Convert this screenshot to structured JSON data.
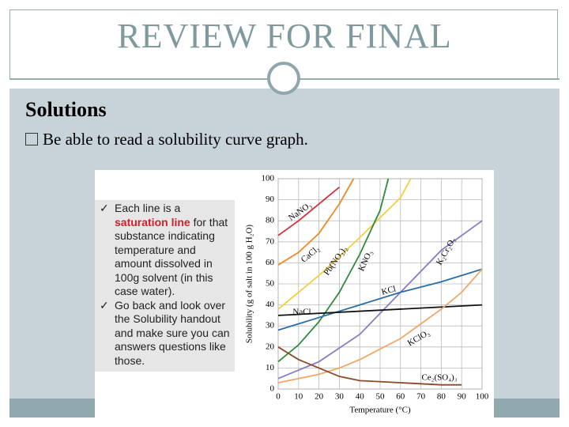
{
  "header": {
    "title": "REVIEW FOR FINAL"
  },
  "body": {
    "heading": "Solutions",
    "bullets": [
      "Be able to read a solubility curve graph."
    ]
  },
  "note": {
    "items": [
      {
        "before": "Each line is a ",
        "highlight": "saturation line",
        "after": " for that substance indicating temperature and amount dissolved in 100g solvent (in this case water)."
      },
      {
        "text": "Go back and look over the Solubility handout and make sure you can answers questions like those."
      }
    ]
  },
  "chart_data": {
    "type": "line",
    "xlabel": "Temperature (°C)",
    "ylabel": "Solubility (g of salt in 100 g H₂O)",
    "xlim": [
      0,
      100
    ],
    "ylim": [
      0,
      100
    ],
    "xticks": [
      0,
      10,
      20,
      30,
      40,
      50,
      60,
      70,
      80,
      90,
      100
    ],
    "yticks": [
      0,
      10,
      20,
      30,
      40,
      50,
      60,
      70,
      80,
      90,
      100
    ],
    "grid": true,
    "series": [
      {
        "name": "NaNO₃",
        "color": "#d2303a",
        "x": [
          0,
          10,
          20,
          30
        ],
        "values": [
          73,
          80,
          88,
          96
        ]
      },
      {
        "name": "CaCl₂",
        "color": "#f08a24",
        "x": [
          0,
          10,
          20,
          30,
          37
        ],
        "values": [
          59,
          65,
          74,
          88,
          100
        ]
      },
      {
        "name": "Pb(NO₃)₂",
        "color": "#f3cf3a",
        "x": [
          0,
          20,
          40,
          60,
          65
        ],
        "values": [
          38,
          54,
          72,
          91,
          100
        ]
      },
      {
        "name": "KNO₃",
        "color": "#2e8b3a",
        "x": [
          0,
          10,
          20,
          30,
          40,
          50,
          54
        ],
        "values": [
          13,
          21,
          32,
          46,
          64,
          85,
          100
        ]
      },
      {
        "name": "K₂Cr₂O₇",
        "color": "#8a7ac8",
        "x": [
          0,
          20,
          40,
          60,
          80,
          100
        ],
        "values": [
          5,
          13,
          26,
          46,
          66,
          80
        ]
      },
      {
        "name": "KCl",
        "color": "#2a6ea8",
        "x": [
          0,
          20,
          40,
          60,
          80,
          100
        ],
        "values": [
          28,
          34,
          40,
          46,
          51,
          57
        ]
      },
      {
        "name": "NaCl",
        "color": "#111111",
        "x": [
          0,
          100
        ],
        "values": [
          35,
          40
        ]
      },
      {
        "name": "KClO₃",
        "color": "#f2a766",
        "x": [
          0,
          10,
          20,
          30,
          40,
          50,
          60,
          70,
          80,
          90,
          100
        ],
        "values": [
          3,
          5,
          7,
          10,
          14,
          19,
          24,
          31,
          38,
          46,
          57
        ]
      },
      {
        "name": "Ce₂(SO₄)₃",
        "color": "#8a4a2a",
        "x": [
          0,
          10,
          20,
          30,
          40,
          60,
          80,
          90
        ],
        "values": [
          20,
          14,
          10,
          6,
          4,
          3,
          2,
          2
        ]
      }
    ]
  }
}
